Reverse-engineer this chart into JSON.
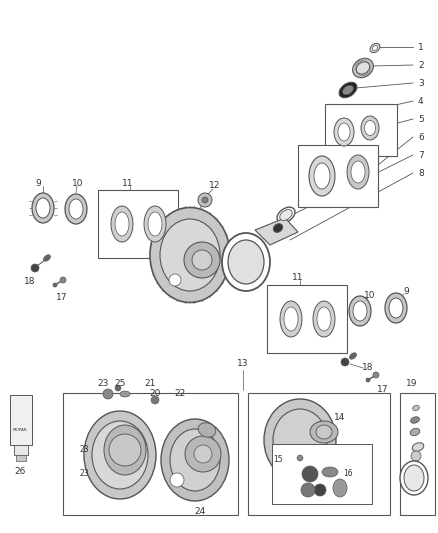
{
  "background_color": "#ffffff",
  "line_color": "#555555",
  "label_color": "#333333",
  "fig_width": 4.38,
  "fig_height": 5.33,
  "dpi": 100
}
